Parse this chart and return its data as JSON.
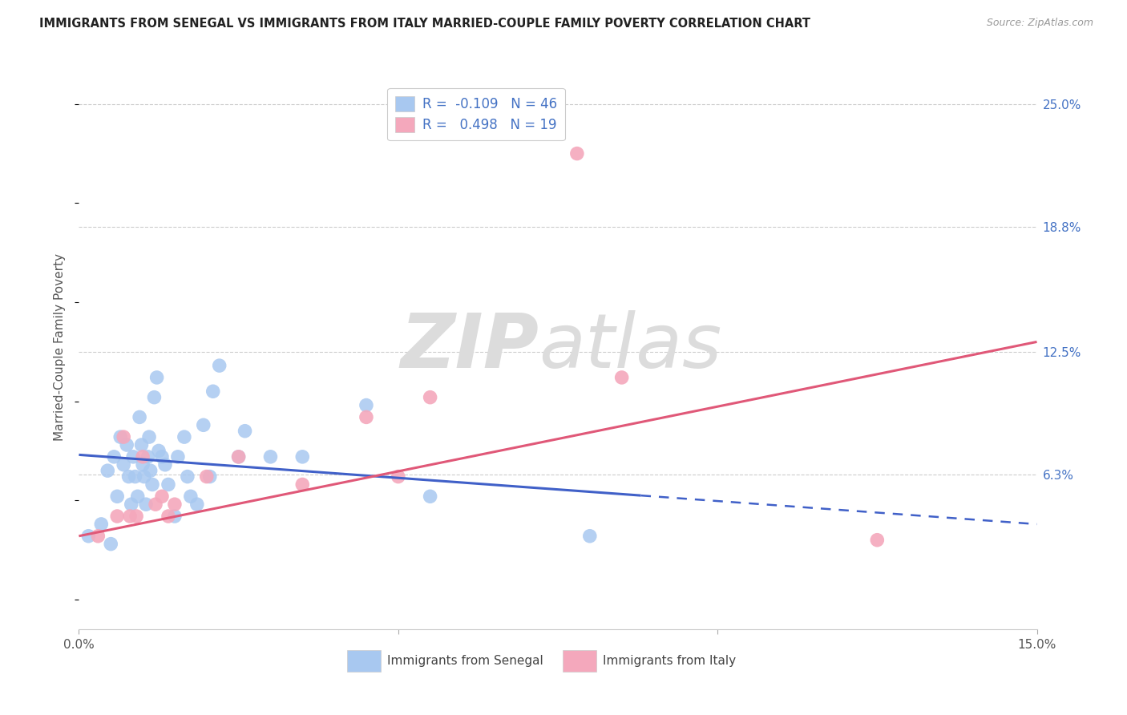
{
  "title": "IMMIGRANTS FROM SENEGAL VS IMMIGRANTS FROM ITALY MARRIED-COUPLE FAMILY POVERTY CORRELATION CHART",
  "source": "Source: ZipAtlas.com",
  "ylabel": "Married-Couple Family Poverty",
  "xlim": [
    0,
    15.0
  ],
  "ylim": [
    -1.5,
    27.0
  ],
  "y_tick_labels_right": [
    "6.3%",
    "12.5%",
    "18.8%",
    "25.0%"
  ],
  "y_tick_values_right": [
    6.3,
    12.5,
    18.8,
    25.0
  ],
  "watermark_zip": "ZIP",
  "watermark_atlas": "atlas",
  "legend_entry1": "R =  -0.109   N = 46",
  "legend_entry2": "R =   0.498   N = 19",
  "legend_label1": "Immigrants from Senegal",
  "legend_label2": "Immigrants from Italy",
  "senegal_color": "#A8C8F0",
  "italy_color": "#F4A8BC",
  "senegal_line_color": "#4060C8",
  "italy_line_color": "#E05878",
  "background_color": "#FFFFFF",
  "senegal_x": [
    0.15,
    0.35,
    0.45,
    0.5,
    0.55,
    0.6,
    0.65,
    0.7,
    0.75,
    0.78,
    0.82,
    0.85,
    0.88,
    0.92,
    0.95,
    0.98,
    1.0,
    1.02,
    1.05,
    1.08,
    1.1,
    1.12,
    1.15,
    1.18,
    1.22,
    1.25,
    1.3,
    1.35,
    1.4,
    1.5,
    1.55,
    1.65,
    1.7,
    1.75,
    1.85,
    1.95,
    2.05,
    2.1,
    2.2,
    2.5,
    2.6,
    3.0,
    3.5,
    4.5,
    5.5,
    8.0
  ],
  "senegal_y": [
    3.2,
    3.8,
    6.5,
    2.8,
    7.2,
    5.2,
    8.2,
    6.8,
    7.8,
    6.2,
    4.8,
    7.2,
    6.2,
    5.2,
    9.2,
    7.8,
    6.8,
    6.2,
    4.8,
    7.2,
    8.2,
    6.5,
    5.8,
    10.2,
    11.2,
    7.5,
    7.2,
    6.8,
    5.8,
    4.2,
    7.2,
    8.2,
    6.2,
    5.2,
    4.8,
    8.8,
    6.2,
    10.5,
    11.8,
    7.2,
    8.5,
    7.2,
    7.2,
    9.8,
    5.2,
    3.2
  ],
  "italy_x": [
    0.3,
    0.6,
    0.7,
    0.8,
    0.9,
    1.0,
    1.2,
    1.3,
    1.4,
    1.5,
    2.0,
    2.5,
    3.5,
    4.5,
    5.0,
    5.5,
    8.5,
    12.5
  ],
  "italy_y": [
    3.2,
    4.2,
    8.2,
    4.2,
    4.2,
    7.2,
    4.8,
    5.2,
    4.2,
    4.8,
    6.2,
    7.2,
    5.8,
    9.2,
    6.2,
    10.2,
    11.2,
    3.0
  ],
  "italy_outlier_x": 7.8,
  "italy_outlier_y": 22.5,
  "senegal_reg_x0": 0.0,
  "senegal_reg_y0": 7.3,
  "senegal_reg_x1": 15.0,
  "senegal_reg_y1": 3.8,
  "senegal_solid_x1": 8.8,
  "italy_reg_x0": 0.0,
  "italy_reg_y0": 3.2,
  "italy_reg_x1": 15.0,
  "italy_reg_y1": 13.0
}
